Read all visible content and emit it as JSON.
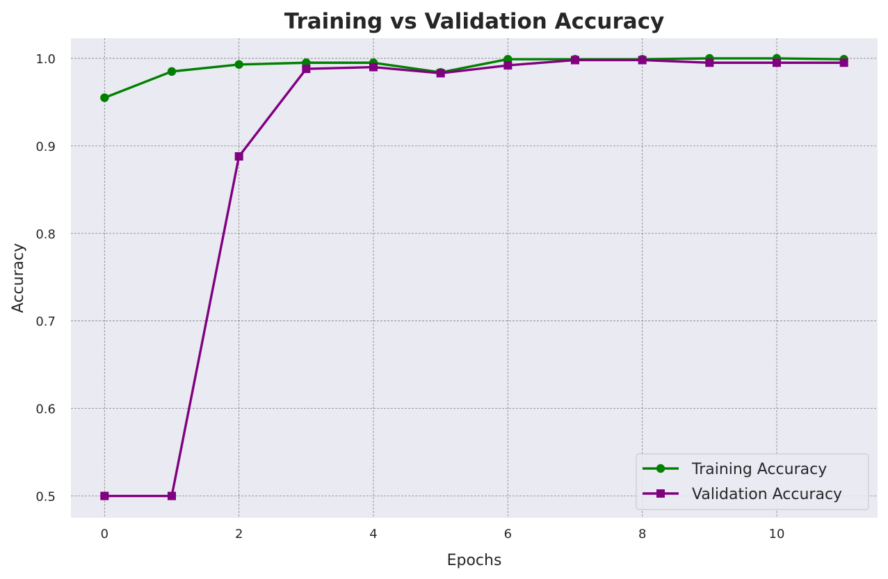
{
  "chart_data": {
    "type": "line",
    "title": "Training vs Validation Accuracy",
    "xlabel": "Epochs",
    "ylabel": "Accuracy",
    "xlim": [
      -0.5,
      11.5
    ],
    "ylim": [
      0.475,
      1.023
    ],
    "xticks": [
      0,
      2,
      4,
      6,
      8,
      10
    ],
    "yticks": [
      0.5,
      0.6,
      0.7,
      0.8,
      0.9,
      1.0
    ],
    "xtick_labels": [
      "0",
      "2",
      "4",
      "6",
      "8",
      "10"
    ],
    "ytick_labels": [
      "0.5",
      "0.6",
      "0.7",
      "0.8",
      "0.9",
      "1.0"
    ],
    "grid": true,
    "legend_position": "bottom-right",
    "x": [
      0,
      1,
      2,
      3,
      4,
      5,
      6,
      7,
      8,
      9,
      10,
      11
    ],
    "series": [
      {
        "name": "Training Accuracy",
        "color": "#008000",
        "marker": "circle",
        "values": [
          0.955,
          0.985,
          0.993,
          0.995,
          0.995,
          0.984,
          0.999,
          0.999,
          0.999,
          1.0,
          1.0,
          0.999
        ]
      },
      {
        "name": "Validation Accuracy",
        "color": "#800080",
        "marker": "square",
        "values": [
          0.5,
          0.5,
          0.888,
          0.988,
          0.99,
          0.983,
          0.992,
          0.998,
          0.998,
          0.995,
          0.995,
          0.995
        ]
      }
    ],
    "colors": {
      "plot_background": "#eaeaf2",
      "grid": "#808080",
      "text": "#262626"
    }
  }
}
